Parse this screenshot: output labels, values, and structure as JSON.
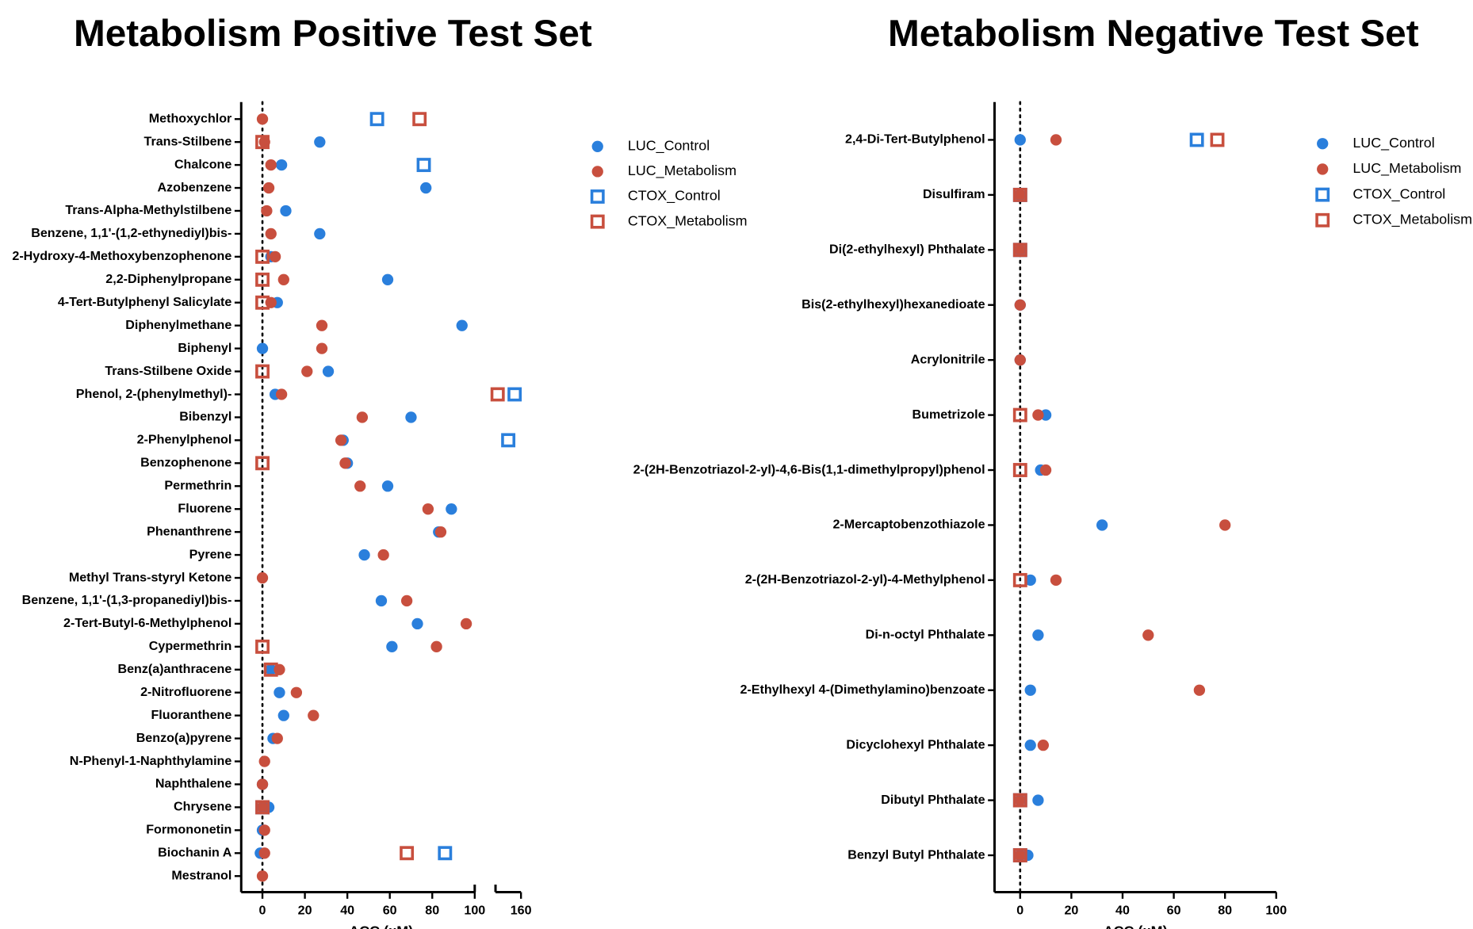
{
  "chart_data": [
    {
      "type": "scatter",
      "title": "Metabolism Positive Test Set",
      "x_label": "ACC (µM)",
      "xlim": [
        -10,
        160
      ],
      "xbreak": [
        100,
        148
      ],
      "xticks": [
        0,
        20,
        40,
        60,
        80,
        100,
        160
      ],
      "vline": 0,
      "categories": [
        "Methoxychlor",
        "Trans-Stilbene",
        "Chalcone",
        "Azobenzene",
        "Trans-Alpha-Methylstilbene",
        "Benzene, 1,1'-(1,2-ethynediyl)bis-",
        "2-Hydroxy-4-Methoxybenzophenone",
        "2,2-Diphenylpropane",
        "4-Tert-Butylphenyl Salicylate",
        "Diphenylmethane",
        "Biphenyl",
        "Trans-Stilbene Oxide",
        "Phenol, 2-(phenylmethyl)-",
        "Bibenzyl",
        "2-Phenylphenol",
        "Benzophenone",
        "Permethrin",
        "Fluorene",
        "Phenanthrene",
        "Pyrene",
        "Methyl Trans-styryl Ketone",
        "Benzene, 1,1'-(1,3-propanediyl)bis-",
        "2-Tert-Butyl-6-Methylphenol",
        "Cypermethrin",
        "Benz(a)anthracene",
        "2-Nitrofluorene",
        "Fluoranthene",
        "Benzo(a)pyrene",
        "N-Phenyl-1-Naphthylamine",
        "Naphthalene",
        "Chrysene",
        "Formononetin",
        "Biochanin A",
        "Mestranol"
      ],
      "series": [
        {
          "name": "LUC_Control",
          "color": "#2a7fdc",
          "marker": "circle",
          "values": [
            null,
            27,
            9,
            77,
            11,
            27,
            4,
            59,
            7,
            94,
            0,
            31,
            6,
            70,
            38,
            40,
            59,
            89,
            83,
            48,
            null,
            56,
            73,
            61,
            4,
            8,
            10,
            5,
            null,
            0,
            3,
            0,
            -1,
            null
          ]
        },
        {
          "name": "LUC_Metabolism",
          "color": "#c84f3e",
          "marker": "circle",
          "values": [
            0,
            1,
            4,
            3,
            2,
            4,
            6,
            10,
            4,
            28,
            28,
            21,
            9,
            47,
            37,
            39,
            46,
            78,
            84,
            57,
            0,
            68,
            96,
            82,
            8,
            16,
            24,
            7,
            1,
            0,
            0,
            1,
            1,
            0
          ]
        },
        {
          "name": "CTOX_Control",
          "color": "#2a7fdc",
          "marker": "square",
          "values": [
            54,
            null,
            76,
            null,
            null,
            null,
            null,
            null,
            null,
            null,
            null,
            null,
            157,
            null,
            154,
            null,
            null,
            null,
            null,
            null,
            null,
            null,
            null,
            null,
            null,
            null,
            null,
            null,
            null,
            null,
            0,
            null,
            86,
            null
          ]
        },
        {
          "name": "CTOX_Metabolism",
          "color": "#c84f3e",
          "marker": "square",
          "values": [
            74,
            0,
            null,
            null,
            null,
            null,
            0,
            0,
            0,
            null,
            null,
            0,
            149,
            null,
            null,
            0,
            null,
            null,
            null,
            null,
            null,
            null,
            null,
            0,
            4,
            null,
            null,
            null,
            null,
            null,
            0,
            null,
            68,
            null
          ]
        }
      ]
    },
    {
      "type": "scatter",
      "title": "Metabolism Negative Test Set",
      "x_label": "ACC (µM)",
      "xlim": [
        -10,
        100
      ],
      "xticks": [
        0,
        20,
        40,
        60,
        80,
        100
      ],
      "vline": 0,
      "categories": [
        "2,4-Di-Tert-Butylphenol",
        "Disulfiram",
        "Di(2-ethylhexyl) Phthalate",
        "Bis(2-ethylhexyl)hexanedioate",
        "Acrylonitrile",
        "Bumetrizole",
        "2-(2H-Benzotriazol-2-yl)-4,6-Bis(1,1-dimethylpropyl)phenol",
        "2-Mercaptobenzothiazole",
        "2-(2H-Benzotriazol-2-yl)-4-Methylphenol",
        "Di-n-octyl Phthalate",
        "2-Ethylhexyl 4-(Dimethylamino)benzoate",
        "Dicyclohexyl Phthalate",
        "Dibutyl Phthalate",
        "Benzyl Butyl Phthalate"
      ],
      "series": [
        {
          "name": "LUC_Control",
          "color": "#2a7fdc",
          "marker": "circle",
          "values": [
            0,
            0,
            0,
            0,
            0,
            10,
            8,
            32,
            4,
            7,
            4,
            4,
            7,
            3
          ]
        },
        {
          "name": "LUC_Metabolism",
          "color": "#c84f3e",
          "marker": "circle",
          "values": [
            14,
            0,
            0,
            0,
            0,
            7,
            10,
            80,
            14,
            50,
            70,
            9,
            0,
            0
          ]
        },
        {
          "name": "CTOX_Control",
          "color": "#2a7fdc",
          "marker": "square",
          "values": [
            69,
            0,
            0,
            null,
            null,
            null,
            null,
            null,
            null,
            null,
            null,
            null,
            0,
            0
          ]
        },
        {
          "name": "CTOX_Metabolism",
          "color": "#c84f3e",
          "marker": "square",
          "values": [
            77,
            0,
            0,
            null,
            null,
            0,
            0,
            null,
            0,
            null,
            null,
            null,
            0,
            0
          ]
        }
      ]
    }
  ]
}
